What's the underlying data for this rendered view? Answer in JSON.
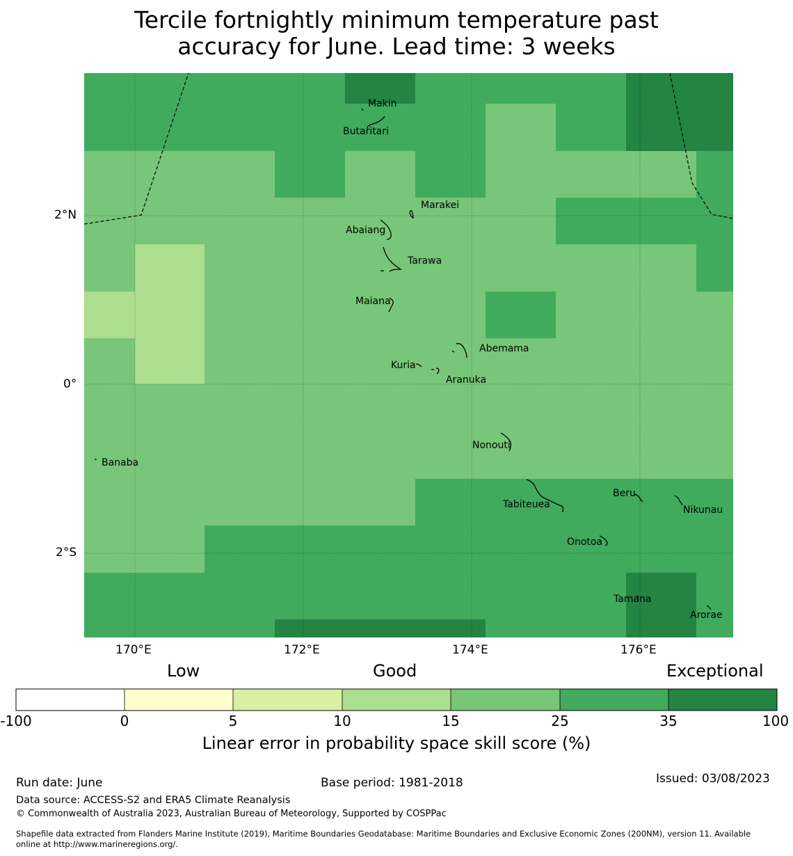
{
  "title_line1": "Tercile fortnightly minimum temperature past",
  "title_line2": "accuracy for June. Lead time: 3 weeks",
  "map": {
    "lon_labels": [
      "170°E",
      "172°E",
      "174°E",
      "176°E"
    ],
    "lat_labels": [
      "2°N",
      "0°",
      "2°S"
    ],
    "places": [
      "Makin",
      "Butaritari",
      "Marakei",
      "Abaiang",
      "Tarawa",
      "Maiana",
      "Abemama",
      "Kuria",
      "Aranuka",
      "Nonouti",
      "Banaba",
      "Beru",
      "Nikunau",
      "Tabiteuea",
      "Onotoa",
      "Tamana",
      "Arorae"
    ]
  },
  "legend": {
    "categories": [
      "Low",
      "Good",
      "Exceptional"
    ],
    "ticks": [
      "-100",
      "0",
      "5",
      "10",
      "15",
      "25",
      "35",
      "100"
    ],
    "colors": [
      "#ffffff",
      "#ffffcc",
      "#d9f0a3",
      "#addd8e",
      "#78c679",
      "#41ab5d",
      "#238443"
    ],
    "title": "Linear error in probability space skill score (%)"
  },
  "footer": {
    "run_date": "Run date: June",
    "base_period": "Base period: 1981-2018",
    "issued": "Issued: 03/08/2023",
    "data_source": "Data source: ACCESS-S2 and ERA5 Climate Reanalysis",
    "copyright": "© Commonwealth of Australia 2023, Australian Bureau of Meteorology, Supported by COSPPac",
    "shapefile_line1": "Shapefile data extracted from Flanders Marine Institute (2019), Maritime Boundaries Geodatabase: Maritime Boundaries and Exclusive Economic Zones (200NM), version 11. Available",
    "shapefile_line2": "online at http://www.marineregions.org/."
  }
}
